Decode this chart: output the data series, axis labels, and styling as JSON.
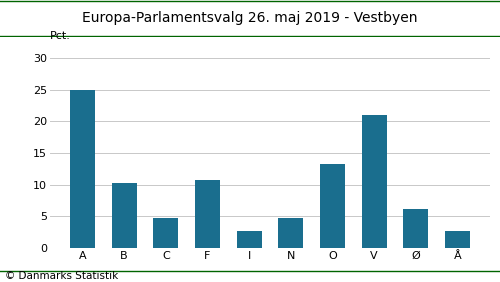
{
  "title": "Europa-Parlamentsvalg 26. maj 2019 - Vestbyen",
  "categories": [
    "A",
    "B",
    "C",
    "F",
    "I",
    "N",
    "O",
    "V",
    "Ø",
    "Å"
  ],
  "values": [
    25.0,
    10.2,
    4.7,
    10.8,
    2.7,
    4.7,
    13.2,
    21.0,
    6.2,
    2.7
  ],
  "bar_color": "#1a6e8e",
  "ylabel": "Pct.",
  "ylim": [
    0,
    32
  ],
  "yticks": [
    0,
    5,
    10,
    15,
    20,
    25,
    30
  ],
  "footer": "© Danmarks Statistik",
  "title_color": "#000000",
  "title_line_color_top": "#006400",
  "title_line_color_bottom": "#006400",
  "background_color": "#ffffff",
  "grid_color": "#c8c8c8",
  "title_fontsize": 10,
  "label_fontsize": 8,
  "tick_fontsize": 8,
  "footer_fontsize": 7.5
}
